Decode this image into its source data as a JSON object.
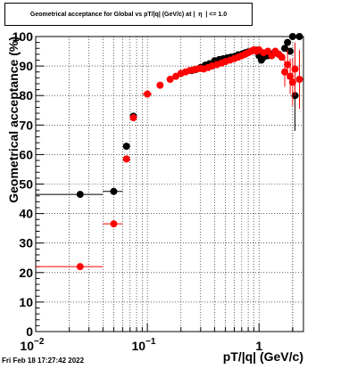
{
  "header": {
    "title": "Geometrical acceptance for Global vs pT/|q| (GeV/c) at |  η  | <= 1.0"
  },
  "footer": {
    "timestamp": "Fri Feb 18 17:27:42 2022"
  },
  "colors": {
    "series_black": "#000000",
    "series_red": "#ff0000",
    "axis": "#000000",
    "grid": "#000000"
  },
  "chart_data": {
    "type": "scatter",
    "title": "Geometrical acceptance for Global vs pT/|q| (GeV/c) at |  η  | <= 1.0",
    "xlabel": "pT/|q| (GeV/c)",
    "ylabel": "Geometrical acceptance (%)",
    "xscale": "log",
    "xlim": [
      0.01,
      2.5
    ],
    "ylim": [
      0,
      100
    ],
    "grid": true,
    "x_ticks": [
      {
        "value": 0.01,
        "base": "10",
        "exp": "−2"
      },
      {
        "value": 0.1,
        "base": "10",
        "exp": "−1"
      },
      {
        "value": 1,
        "base": "1",
        "exp": ""
      }
    ],
    "y_ticks": [
      0,
      10,
      20,
      30,
      40,
      50,
      60,
      70,
      80,
      90,
      100
    ],
    "series": [
      {
        "color": "#000000",
        "points": [
          {
            "x": 0.025,
            "y": 46.5,
            "xerr": [
              0.01,
              0.04
            ]
          },
          {
            "x": 0.05,
            "y": 47.5,
            "xerr": [
              0.04,
              0.06
            ]
          },
          {
            "x": 0.065,
            "y": 62.8
          },
          {
            "x": 0.075,
            "y": 73
          },
          {
            "x": 0.25,
            "y": 88.5
          },
          {
            "x": 0.27,
            "y": 88.8
          },
          {
            "x": 0.3,
            "y": 89.5
          },
          {
            "x": 0.33,
            "y": 90.3
          },
          {
            "x": 0.36,
            "y": 90.8
          },
          {
            "x": 0.4,
            "y": 91.8
          },
          {
            "x": 0.44,
            "y": 92.2
          },
          {
            "x": 0.48,
            "y": 92.5
          },
          {
            "x": 0.52,
            "y": 92.8
          },
          {
            "x": 0.56,
            "y": 93.0
          },
          {
            "x": 0.6,
            "y": 93.2
          },
          {
            "x": 0.65,
            "y": 93.8
          },
          {
            "x": 0.7,
            "y": 94.0
          },
          {
            "x": 0.75,
            "y": 94.5
          },
          {
            "x": 0.8,
            "y": 94.8
          },
          {
            "x": 0.85,
            "y": 95.0
          },
          {
            "x": 0.9,
            "y": 95.3
          },
          {
            "x": 0.95,
            "y": 95.4
          },
          {
            "x": 1.0,
            "y": 93.5
          },
          {
            "x": 1.05,
            "y": 92.0
          },
          {
            "x": 1.1,
            "y": 93.0
          },
          {
            "x": 1.2,
            "y": 93.5
          },
          {
            "x": 1.3,
            "y": 94.0
          },
          {
            "x": 1.4,
            "y": 94.5
          },
          {
            "x": 1.5,
            "y": 94.0
          },
          {
            "x": 1.6,
            "y": 93.0
          },
          {
            "x": 1.7,
            "y": 96.0
          },
          {
            "x": 1.8,
            "y": 98.0
          },
          {
            "x": 1.9,
            "y": 95.0
          },
          {
            "x": 2.0,
            "y": 100.0
          },
          {
            "x": 2.1,
            "y": 80.0,
            "yerr": 12
          },
          {
            "x": 2.3,
            "y": 100.0
          }
        ]
      },
      {
        "color": "#ff0000",
        "points": [
          {
            "x": 0.025,
            "y": 22.0,
            "xerr": [
              0.01,
              0.04
            ]
          },
          {
            "x": 0.05,
            "y": 36.5,
            "xerr": [
              0.04,
              0.06
            ]
          },
          {
            "x": 0.065,
            "y": 58.5
          },
          {
            "x": 0.075,
            "y": 72.5
          },
          {
            "x": 0.1,
            "y": 80.5,
            "xerr": [
              0.09,
              0.11
            ]
          },
          {
            "x": 0.13,
            "y": 83.5
          },
          {
            "x": 0.16,
            "y": 85.5
          },
          {
            "x": 0.18,
            "y": 86.5
          },
          {
            "x": 0.2,
            "y": 87.5
          },
          {
            "x": 0.22,
            "y": 88.0
          },
          {
            "x": 0.24,
            "y": 88.5
          },
          {
            "x": 0.26,
            "y": 88.7
          },
          {
            "x": 0.28,
            "y": 89.0
          },
          {
            "x": 0.3,
            "y": 89.2
          },
          {
            "x": 0.32,
            "y": 89.0
          },
          {
            "x": 0.35,
            "y": 89.5
          },
          {
            "x": 0.38,
            "y": 90.0
          },
          {
            "x": 0.42,
            "y": 90.5
          },
          {
            "x": 0.46,
            "y": 91.0
          },
          {
            "x": 0.5,
            "y": 91.5
          },
          {
            "x": 0.55,
            "y": 92.0
          },
          {
            "x": 0.6,
            "y": 92.5
          },
          {
            "x": 0.65,
            "y": 93.0
          },
          {
            "x": 0.7,
            "y": 93.5
          },
          {
            "x": 0.75,
            "y": 94.0
          },
          {
            "x": 0.8,
            "y": 94.5
          },
          {
            "x": 0.85,
            "y": 95.0
          },
          {
            "x": 0.9,
            "y": 95.5
          },
          {
            "x": 0.95,
            "y": 95.0
          },
          {
            "x": 1.0,
            "y": 95.5
          },
          {
            "x": 1.1,
            "y": 94.5
          },
          {
            "x": 1.2,
            "y": 95.0
          },
          {
            "x": 1.3,
            "y": 93.5
          },
          {
            "x": 1.4,
            "y": 95.0
          },
          {
            "x": 1.5,
            "y": 94.0
          },
          {
            "x": 1.6,
            "y": 93.0
          },
          {
            "x": 1.7,
            "y": 88.0,
            "yerr": 5
          },
          {
            "x": 1.8,
            "y": 90.5,
            "yerr": 5
          },
          {
            "x": 1.9,
            "y": 86.5,
            "yerr": 6
          },
          {
            "x": 2.0,
            "y": 84.5,
            "yerr": 8
          },
          {
            "x": 2.1,
            "y": 89.0,
            "yerr": 9
          },
          {
            "x": 2.3,
            "y": 85.5,
            "yerr": 10
          }
        ]
      }
    ]
  }
}
